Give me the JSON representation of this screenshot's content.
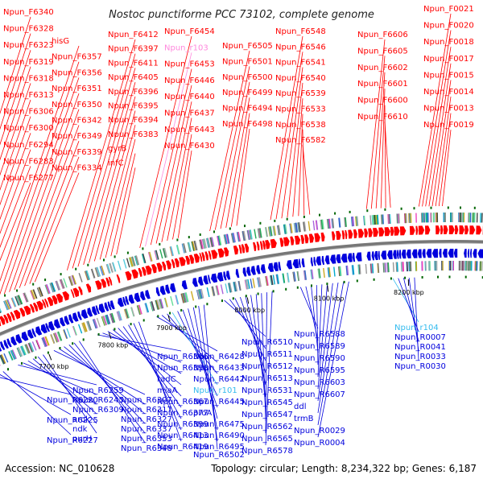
{
  "title": "Nostoc punctiforme PCC 73102, complete genome",
  "footer": {
    "accession": "Accession: NC_010628",
    "summary": "Topology: circular; Length: 8,234,322 bp; Genes: 6,187"
  },
  "colors": {
    "forward": "#ff0000",
    "reverse": "#0000dd",
    "rna": "#ff88dd",
    "rna_reverse": "#33bbee",
    "backbone": "#777777",
    "tick": "#006600"
  },
  "ticks": [
    "7700 kbp",
    "7800 kbp",
    "7900 kbp",
    "8000 kbp",
    "8100 kbp",
    "8200 kbp"
  ],
  "forward_labels": [
    "Npun_F6340",
    "Npun_F6328",
    "Npun_F6323",
    "Npun_F6319",
    "Npun_F6318",
    "Npun_F6313",
    "Npun_F6306",
    "Npun_F6300",
    "Npun_F6294",
    "Npun_F6283",
    "Npun_F6277",
    "hisG",
    "Npun_F6357",
    "Npun_F6356",
    "Npun_F6351",
    "Npun_F6350",
    "Npun_F6342",
    "Npun_F6349",
    "Npun_F6339",
    "Npun_F6334",
    "Npun_F6412",
    "Npun_F6397",
    "Npun_F6411",
    "Npun_F6405",
    "Npun_F6396",
    "Npun_F6395",
    "Npun_F6394",
    "Npun_F6383",
    "gyrB",
    "infC",
    "Npun_F6454",
    "Npun_r103",
    "Npun_F6453",
    "Npun_F6446",
    "Npun_F6440",
    "Npun_F6437",
    "Npun_F6443",
    "Npun_F6430",
    "Npun_F6505",
    "Npun_F6501",
    "Npun_F6500",
    "Npun_F6499",
    "Npun_F6494",
    "Npun_F6498",
    "Npun_F6548",
    "Npun_F6546",
    "Npun_F6541",
    "Npun_F6540",
    "Npun_F6539",
    "Npun_F6533",
    "Npun_F6538",
    "Npun_F6582",
    "Npun_F6606",
    "Npun_F6605",
    "Npun_F6602",
    "Npun_F6601",
    "Npun_F6600",
    "Npun_F6610",
    "Npun_F0021",
    "Npun_F0020",
    "Npun_F0018",
    "Npun_F0017",
    "Npun_F0015",
    "Npun_F0014",
    "Npun_F0013",
    "Npun_F0019"
  ],
  "reverse_labels": [
    "Npun_R6220",
    "Npun_R6225",
    "Npun_R6227",
    "Npun_R6259",
    "Npun_R6245",
    "Npun_R6309",
    "arok",
    "ndk",
    "purH",
    "Npun_R6307",
    "Npun_R6317",
    "Npun_R6327",
    "Npun_R6337",
    "Npun_R6353",
    "Npun_R6348",
    "Npun_R6366",
    "Npun_R6398",
    "radC",
    "miaA",
    "Npun_R6367",
    "Npun_R6377",
    "Npun_R6399",
    "Npun_R6413",
    "Npun_R6419",
    "Npun_R6428",
    "Npun_R6433",
    "Npun_R6442",
    "Npun_r101",
    "Npun_R6445",
    "proA",
    "Npun_R6475",
    "Npun_R6490",
    "Npun_R6495",
    "Npun_R6502",
    "Npun_R6510",
    "Npun_R6511",
    "Npun_R6512",
    "Npun_R6513",
    "Npun_R6531",
    "Npun_R6545",
    "Npun_R6547",
    "Npun_R6562",
    "Npun_R6565",
    "Npun_R6578",
    "Npun_R6588",
    "Npun_R6589",
    "Npun_R6590",
    "Npun_R6595",
    "Npun_R6603",
    "Npun_R6607",
    "ddl",
    "trmB",
    "Npun_R0029",
    "Npun_R0004",
    "Npun_r104",
    "Npun_R0007",
    "Npun_R0041",
    "Npun_R0033",
    "Npun_R0030"
  ]
}
